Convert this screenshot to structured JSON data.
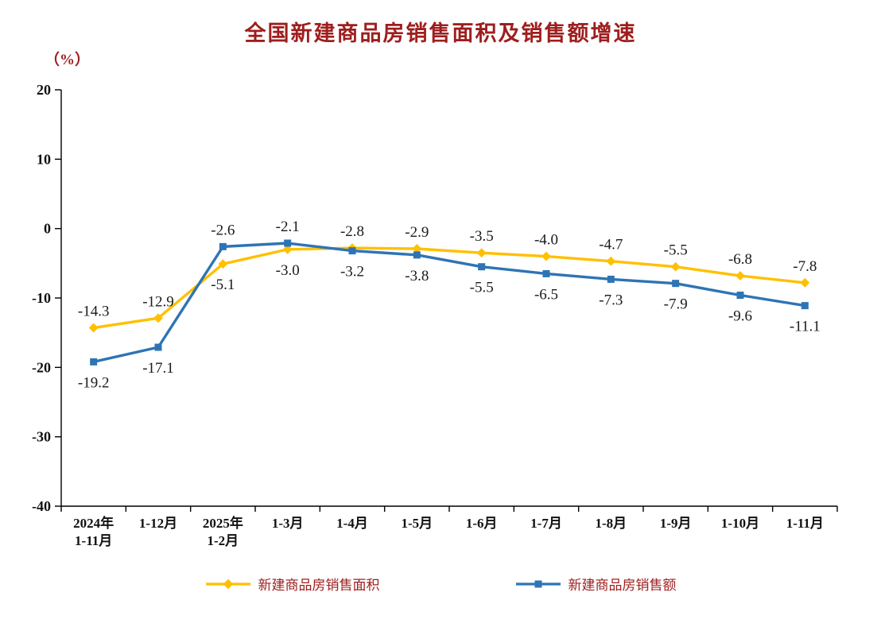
{
  "chart_data": {
    "type": "line",
    "title": "全国新建商品房销售面积及销售额增速",
    "y_unit": "（%）",
    "y_range": [
      -40,
      20
    ],
    "y_ticks": [
      20,
      10,
      0,
      -10,
      -20,
      -30,
      -40
    ],
    "grid": "off",
    "legend_position": "bottom",
    "categories": [
      [
        "2024年",
        "1-11月"
      ],
      [
        "1-12月"
      ],
      [
        "2025年",
        "1-2月"
      ],
      [
        "1-3月"
      ],
      [
        "1-4月"
      ],
      [
        "1-5月"
      ],
      [
        "1-6月"
      ],
      [
        "1-7月"
      ],
      [
        "1-8月"
      ],
      [
        "1-9月"
      ],
      [
        "1-10月"
      ],
      [
        "1-11月"
      ]
    ],
    "series": [
      {
        "name": "新建商品房销售面积",
        "marker": "diamond",
        "color": "#FFC000",
        "values": [
          -14.3,
          -12.9,
          -5.1,
          -3.0,
          -2.8,
          -2.9,
          -3.5,
          -4.0,
          -4.7,
          -5.5,
          -6.8,
          -7.8
        ]
      },
      {
        "name": "新建商品房销售额",
        "marker": "square",
        "color": "#2E74B5",
        "values": [
          -19.2,
          -17.1,
          -2.6,
          -2.1,
          -3.2,
          -3.8,
          -5.5,
          -6.5,
          -7.3,
          -7.9,
          -9.6,
          -11.1
        ]
      }
    ],
    "colors": {
      "title": "#9E1E1E",
      "legend_text": "#9E1E1E",
      "axis": "#000000",
      "label": "#1A1A1A"
    }
  }
}
